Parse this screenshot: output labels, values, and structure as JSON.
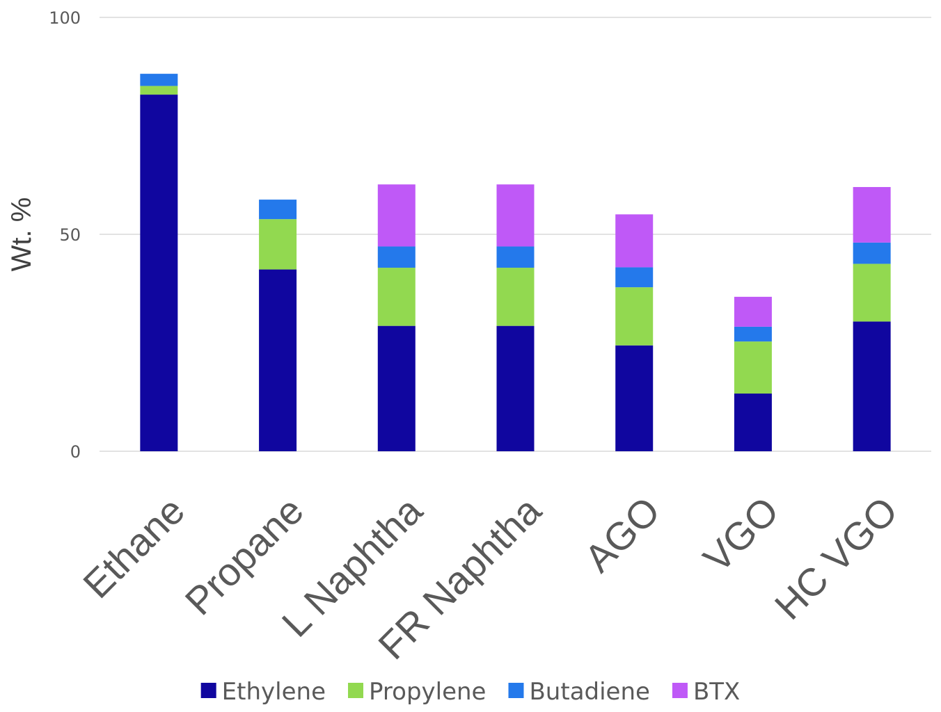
{
  "chart_data": {
    "type": "bar",
    "stacked": true,
    "categories": [
      "Ethane",
      "Propane",
      "L Naphtha",
      "FR Naphtha",
      "AGO",
      "VGO",
      "HC VGO"
    ],
    "series": [
      {
        "name": "Ethylene",
        "color": "#10069f",
        "values": [
          82.2,
          41.9,
          28.9,
          28.9,
          24.4,
          13.3,
          29.9
        ]
      },
      {
        "name": "Propylene",
        "color": "#92d950",
        "values": [
          2.0,
          11.6,
          13.4,
          13.4,
          13.4,
          12.0,
          13.3
        ]
      },
      {
        "name": "Butadiene",
        "color": "#2479eb",
        "values": [
          2.8,
          4.5,
          4.9,
          4.9,
          4.6,
          3.4,
          4.9
        ]
      },
      {
        "name": "BTX",
        "color": "#bf59f7",
        "values": [
          0,
          0,
          14.3,
          14.3,
          12.2,
          6.9,
          12.8
        ]
      }
    ],
    "ylabel": "Wt. %",
    "xlabel": "",
    "ylim": [
      0,
      100
    ],
    "yticks": [
      "0",
      "50",
      "100"
    ],
    "grid": true,
    "legend_position": "bottom"
  }
}
